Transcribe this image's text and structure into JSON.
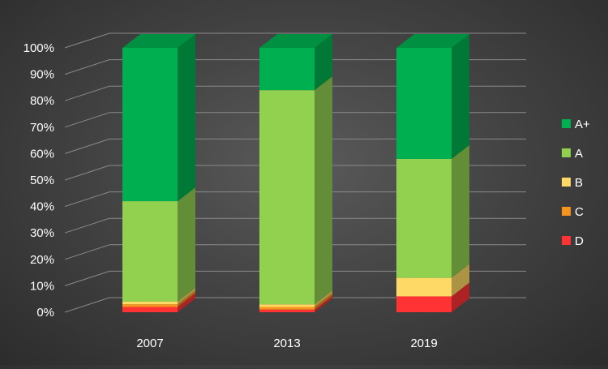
{
  "chart_data": {
    "type": "bar",
    "stacked": true,
    "percent": true,
    "three_d": true,
    "categories": [
      "2007",
      "2013",
      "2019"
    ],
    "series": [
      {
        "name": "D",
        "color": "#ff3333",
        "values": [
          2,
          1,
          6
        ]
      },
      {
        "name": "C",
        "color": "#f7941d",
        "values": [
          1,
          1,
          0
        ]
      },
      {
        "name": "B",
        "color": "#ffd966",
        "values": [
          1,
          1,
          7
        ]
      },
      {
        "name": "A",
        "color": "#92d050",
        "values": [
          38,
          81,
          45
        ]
      },
      {
        "name": "A+",
        "color": "#00b050",
        "values": [
          58,
          16,
          42
        ]
      }
    ],
    "ylim": [
      0,
      100
    ],
    "yticks": [
      "0%",
      "10%",
      "20%",
      "30%",
      "40%",
      "50%",
      "60%",
      "70%",
      "80%",
      "90%",
      "100%"
    ],
    "grid": true,
    "legend_position": "right",
    "background": "#3c3c3c",
    "text_color": "#ffffff"
  }
}
